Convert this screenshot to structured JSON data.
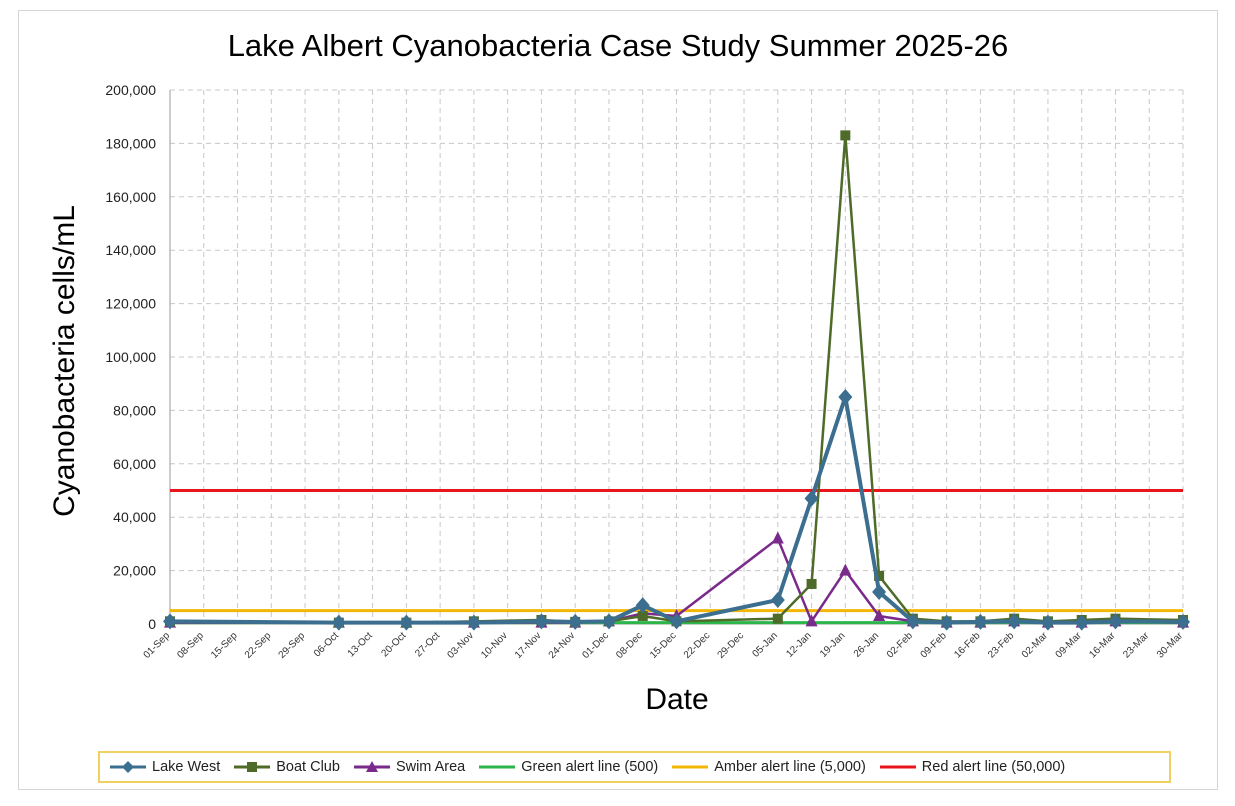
{
  "chart_data": {
    "type": "line",
    "title": "Lake Albert Cyanobacteria Case Study Summer 2025-26",
    "xlabel": "Date",
    "ylabel": "Cyanobacteria cells/mL",
    "ylim": [
      0,
      200000
    ],
    "yticks": [
      "0",
      "20,000",
      "40,000",
      "60,000",
      "80,000",
      "100,000",
      "120,000",
      "140,000",
      "160,000",
      "180,000",
      "200,000"
    ],
    "x_tick_labels": [
      "01-Sep",
      "08-Sep",
      "15-Sep",
      "22-Sep",
      "29-Sep",
      "06-Oct",
      "13-Oct",
      "20-Oct",
      "27-Oct",
      "03-Nov",
      "10-Nov",
      "17-Nov",
      "24-Nov",
      "01-Dec",
      "08-Dec",
      "15-Dec",
      "22-Dec",
      "29-Dec",
      "05-Jan",
      "12-Jan",
      "19-Jan",
      "26-Jan",
      "02-Feb",
      "09-Feb",
      "16-Feb",
      "23-Feb",
      "02-Mar",
      "09-Mar",
      "16-Mar",
      "23-Mar",
      "30-Mar"
    ],
    "grid": true,
    "legend_position": "bottom",
    "series": [
      {
        "name": "Lake West",
        "color": "#3b6e8f",
        "marker": "diamond",
        "points": [
          [
            "01-Sep",
            1000
          ],
          [
            "06-Oct",
            500
          ],
          [
            "20-Oct",
            500
          ],
          [
            "03-Nov",
            500
          ],
          [
            "17-Nov",
            1000
          ],
          [
            "24-Nov",
            800
          ],
          [
            "01-Dec",
            1000
          ],
          [
            "08-Dec",
            7000
          ],
          [
            "15-Dec",
            1000
          ],
          [
            "05-Jan",
            9000
          ],
          [
            "12-Jan",
            47000
          ],
          [
            "19-Jan",
            85000
          ],
          [
            "26-Jan",
            12000
          ],
          [
            "02-Feb",
            1000
          ],
          [
            "09-Feb",
            500
          ],
          [
            "16-Feb",
            800
          ],
          [
            "23-Feb",
            1000
          ],
          [
            "02-Mar",
            500
          ],
          [
            "09-Mar",
            500
          ],
          [
            "16-Mar",
            1000
          ],
          [
            "30-Mar",
            800
          ]
        ]
      },
      {
        "name": "Boat Club",
        "color": "#4e6b2a",
        "marker": "square",
        "points": [
          [
            "01-Sep",
            1000
          ],
          [
            "06-Oct",
            500
          ],
          [
            "20-Oct",
            500
          ],
          [
            "03-Nov",
            1000
          ],
          [
            "17-Nov",
            1500
          ],
          [
            "24-Nov",
            800
          ],
          [
            "01-Dec",
            1000
          ],
          [
            "08-Dec",
            3000
          ],
          [
            "15-Dec",
            1000
          ],
          [
            "05-Jan",
            2000
          ],
          [
            "12-Jan",
            15000
          ],
          [
            "19-Jan",
            183000
          ],
          [
            "26-Jan",
            18000
          ],
          [
            "02-Feb",
            2000
          ],
          [
            "09-Feb",
            1000
          ],
          [
            "16-Feb",
            1000
          ],
          [
            "23-Feb",
            2000
          ],
          [
            "02-Mar",
            1000
          ],
          [
            "09-Mar",
            1500
          ],
          [
            "16-Mar",
            2000
          ],
          [
            "30-Mar",
            1500
          ]
        ]
      },
      {
        "name": "Swim Area",
        "color": "#7a2a8a",
        "marker": "triangle",
        "points": [
          [
            "01-Sep",
            500
          ],
          [
            "06-Oct",
            500
          ],
          [
            "20-Oct",
            500
          ],
          [
            "03-Nov",
            500
          ],
          [
            "17-Nov",
            500
          ],
          [
            "24-Nov",
            500
          ],
          [
            "01-Dec",
            1000
          ],
          [
            "08-Dec",
            4000
          ],
          [
            "15-Dec",
            3000
          ],
          [
            "05-Jan",
            32000
          ],
          [
            "12-Jan",
            1000
          ],
          [
            "19-Jan",
            20000
          ],
          [
            "26-Jan",
            3000
          ],
          [
            "02-Feb",
            1000
          ],
          [
            "09-Feb",
            500
          ],
          [
            "16-Feb",
            500
          ],
          [
            "23-Feb",
            1000
          ],
          [
            "02-Mar",
            500
          ],
          [
            "09-Mar",
            500
          ],
          [
            "16-Mar",
            1000
          ],
          [
            "30-Mar",
            500
          ]
        ]
      },
      {
        "name": "Green alert line (500)",
        "color": "#2bb54b",
        "marker": "none",
        "points": [
          [
            "01-Sep",
            500
          ],
          [
            "30-Mar",
            500
          ]
        ]
      },
      {
        "name": "Amber alert line (5,000)",
        "color": "#f2b705",
        "marker": "none",
        "points": [
          [
            "01-Sep",
            5000
          ],
          [
            "30-Mar",
            5000
          ]
        ]
      },
      {
        "name": "Red alert line (50,000)",
        "color": "#e8161b",
        "marker": "none",
        "points": [
          [
            "01-Sep",
            50000
          ],
          [
            "30-Mar",
            50000
          ]
        ]
      }
    ]
  }
}
